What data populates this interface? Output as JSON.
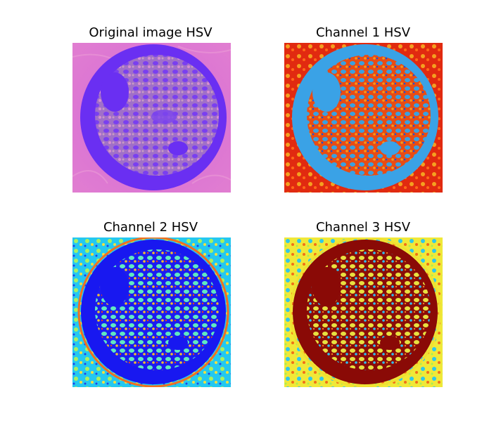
{
  "figure": {
    "panels": [
      {
        "title": "Original image HSV",
        "image": "original-hsv-image"
      },
      {
        "title": "Channel 1 HSV",
        "image": "channel-1-hsv-image"
      },
      {
        "title": "Channel 2 HSV",
        "image": "channel-2-hsv-image"
      },
      {
        "title": "Channel 3 HSV",
        "image": "channel-3-hsv-image"
      }
    ]
  }
}
